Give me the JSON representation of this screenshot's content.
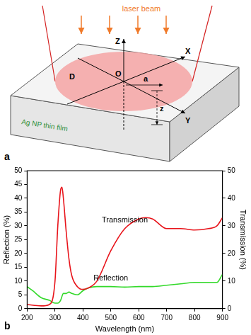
{
  "diagram": {
    "panel_label": "a",
    "beam_label": "laser beam",
    "film_label": "Ag NP thin film",
    "axis_labels": {
      "x": "X",
      "y": "Y",
      "z": "Z"
    },
    "origin_label": "O",
    "radius_label": "a",
    "depth_label": "z",
    "diameter_label": "D"
  },
  "chart_data": {
    "type": "line",
    "panel_label": "b",
    "xlabel": "Wavelength (nm)",
    "ylabel": "Reflection (%)",
    "y2label": "Transmission (%)",
    "xlim": [
      200,
      900
    ],
    "xticks": [
      200,
      300,
      400,
      500,
      600,
      700,
      800,
      900
    ],
    "ylim": [
      0,
      50
    ],
    "yticks": [
      0,
      5,
      10,
      15,
      20,
      25,
      30,
      35,
      40,
      45,
      50
    ],
    "y2lim": [
      0,
      50
    ],
    "y2ticks": [
      0,
      10,
      20,
      30,
      40,
      50
    ],
    "grid": false,
    "series": [
      {
        "name": "Transmission",
        "color": "#e8141b",
        "axis": "y2",
        "x": [
          200,
          250,
          280,
          300,
          310,
          320,
          325,
          330,
          340,
          350,
          360,
          380,
          400,
          420,
          450,
          500,
          550,
          600,
          625,
          650,
          700,
          750,
          800,
          850,
          880,
          900
        ],
        "values": [
          1.5,
          1,
          1.5,
          10,
          30,
          43,
          44,
          40,
          28,
          18,
          12,
          8,
          7,
          7.5,
          10,
          21,
          29,
          32.5,
          33,
          32.5,
          29,
          29,
          28.5,
          29,
          30,
          33
        ]
      },
      {
        "name": "Reflection",
        "color": "#33d92a",
        "x": [
          200,
          220,
          250,
          280,
          300,
          310,
          320,
          330,
          340,
          350,
          360,
          380,
          400,
          420,
          450,
          500,
          550,
          600,
          650,
          700,
          750,
          800,
          850,
          880,
          900
        ],
        "values": [
          8,
          6.5,
          4,
          3,
          2,
          2,
          3,
          5.5,
          5.5,
          6,
          5.5,
          5,
          6.5,
          7.5,
          8,
          8,
          7.8,
          8,
          8,
          8.5,
          9,
          9.5,
          9.5,
          9.5,
          12.5
        ]
      }
    ]
  }
}
